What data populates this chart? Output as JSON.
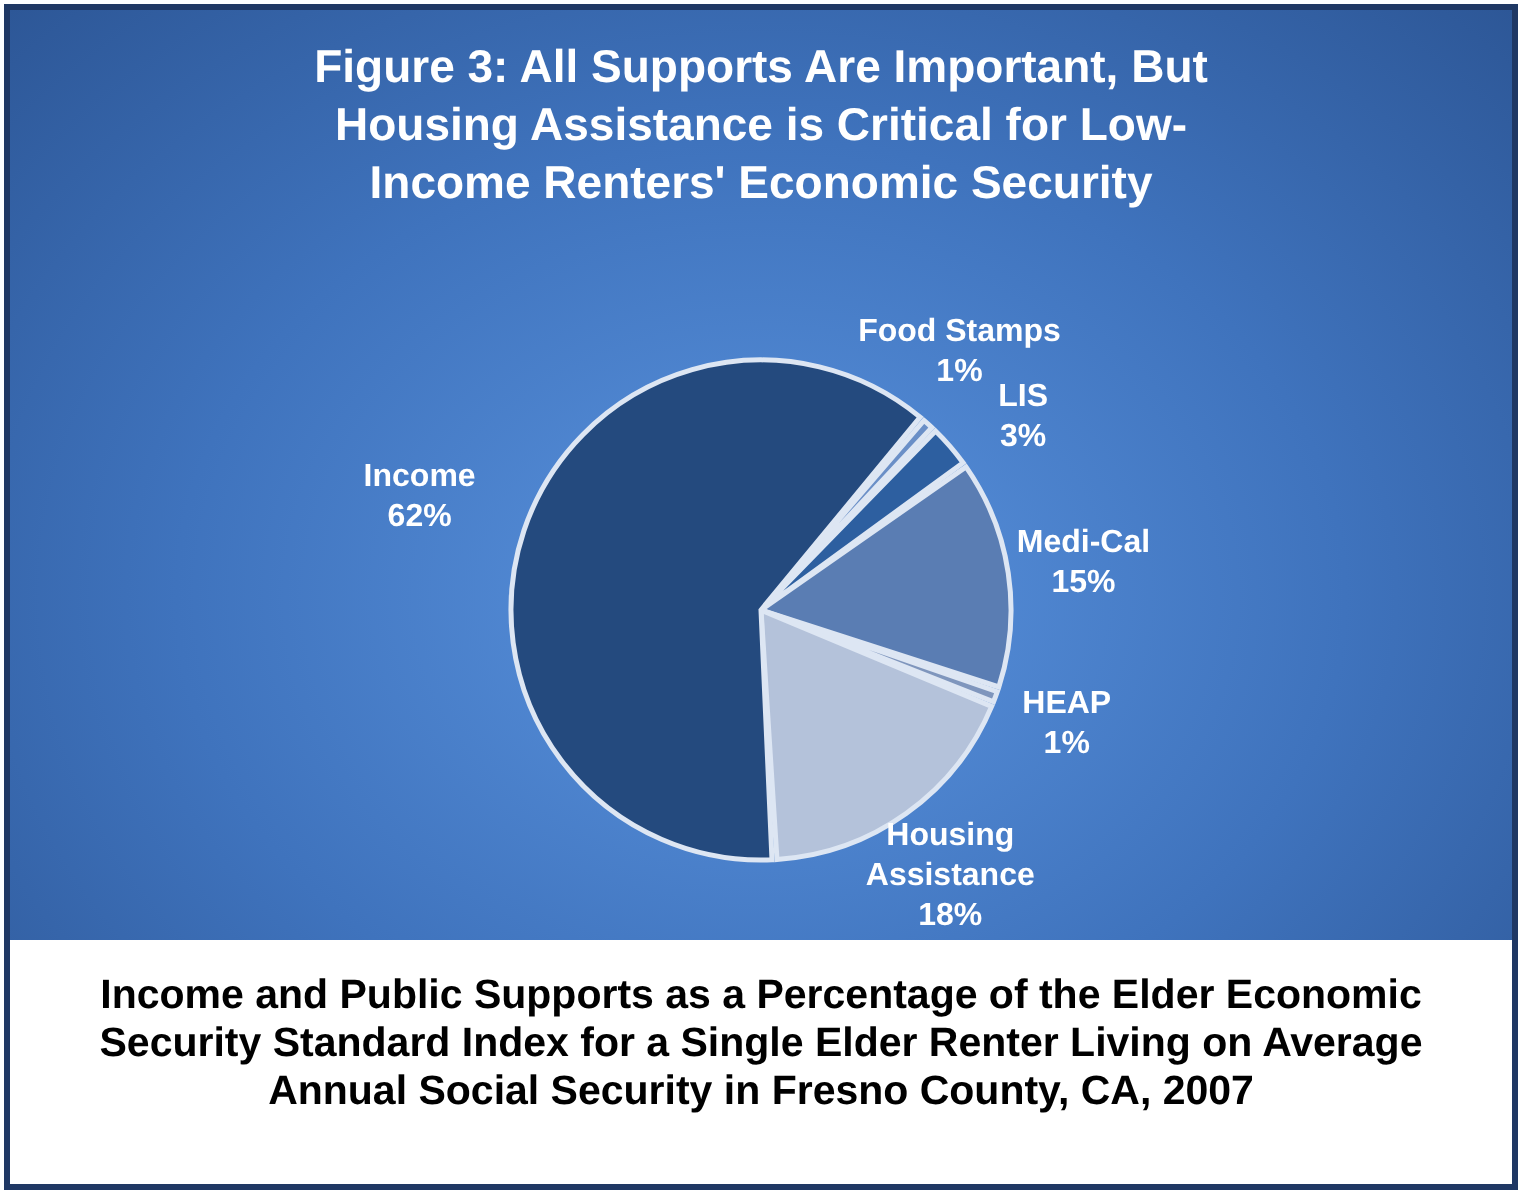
{
  "chart_data": {
    "type": "pie",
    "title": "Figure 3: All Supports Are Important, But Housing Assistance is Critical for Low-Income Renters' Economic Security",
    "categories": [
      "Food Stamps",
      "LIS",
      "Medi-Cal",
      "HEAP",
      "Housing Assistance",
      "Income"
    ],
    "values": [
      1,
      3,
      15,
      1,
      18,
      62
    ],
    "value_labels": [
      "1%",
      "3%",
      "15%",
      "1%",
      "18%",
      "62%"
    ],
    "colors": [
      "#6a8fc7",
      "#2d5fa0",
      "#5a7db3",
      "#7f96bd",
      "#b4c2da",
      "#244a7e"
    ],
    "annotations": [
      "Income and Public Supports as a Percentage of the Elder Economic Security Standard Index for a Single Elder Renter Living on Average Annual Social Security in Fresno County, CA, 2007"
    ]
  }
}
